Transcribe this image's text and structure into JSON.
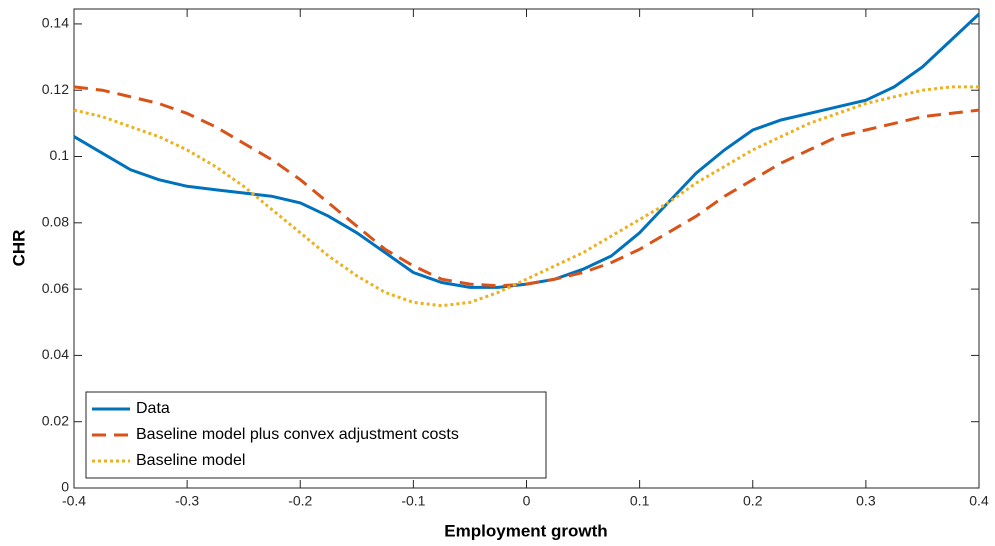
{
  "chart_data": {
    "type": "line",
    "xlabel": "Employment growth",
    "ylabel": "CHR",
    "x": [
      -0.4,
      -0.375,
      -0.35,
      -0.325,
      -0.3,
      -0.275,
      -0.25,
      -0.225,
      -0.2,
      -0.175,
      -0.15,
      -0.125,
      -0.1,
      -0.075,
      -0.05,
      -0.025,
      0,
      0.025,
      0.05,
      0.075,
      0.1,
      0.125,
      0.15,
      0.175,
      0.2,
      0.225,
      0.25,
      0.275,
      0.3,
      0.325,
      0.35,
      0.375,
      0.4
    ],
    "series": [
      {
        "name": "Data",
        "color": "#0072bd",
        "style": "solid",
        "values": [
          0.106,
          0.101,
          0.096,
          0.093,
          0.091,
          0.09,
          0.089,
          0.088,
          0.086,
          0.082,
          0.077,
          0.071,
          0.065,
          0.062,
          0.0605,
          0.0605,
          0.0615,
          0.063,
          0.066,
          0.07,
          0.077,
          0.086,
          0.095,
          0.102,
          0.108,
          0.111,
          0.113,
          0.115,
          0.117,
          0.121,
          0.127,
          0.135,
          0.143
        ]
      },
      {
        "name": "Baseline model plus convex adjustment costs",
        "color": "#d95319",
        "style": "dashed",
        "values": [
          0.121,
          0.12,
          0.118,
          0.116,
          0.113,
          0.109,
          0.104,
          0.099,
          0.093,
          0.086,
          0.079,
          0.072,
          0.067,
          0.063,
          0.0615,
          0.061,
          0.0615,
          0.063,
          0.065,
          0.068,
          0.072,
          0.077,
          0.082,
          0.088,
          0.093,
          0.098,
          0.102,
          0.106,
          0.108,
          0.11,
          0.112,
          0.113,
          0.114
        ]
      },
      {
        "name": "Baseline model",
        "color": "#edb120",
        "style": "dotted",
        "values": [
          0.114,
          0.112,
          0.109,
          0.106,
          0.102,
          0.097,
          0.091,
          0.084,
          0.077,
          0.07,
          0.064,
          0.059,
          0.056,
          0.055,
          0.056,
          0.059,
          0.063,
          0.067,
          0.071,
          0.076,
          0.081,
          0.086,
          0.092,
          0.097,
          0.102,
          0.106,
          0.11,
          0.113,
          0.116,
          0.118,
          0.12,
          0.121,
          0.121
        ]
      }
    ],
    "xlim": [
      -0.4,
      0.4
    ],
    "ylim": [
      0,
      0.1445
    ],
    "xticks": [
      -0.4,
      -0.3,
      -0.2,
      -0.1,
      0,
      0.1,
      0.2,
      0.3,
      0.4
    ],
    "yticks": [
      0,
      0.02,
      0.04,
      0.06,
      0.08,
      0.1,
      0.12,
      0.14
    ],
    "legend": "lower-left"
  }
}
